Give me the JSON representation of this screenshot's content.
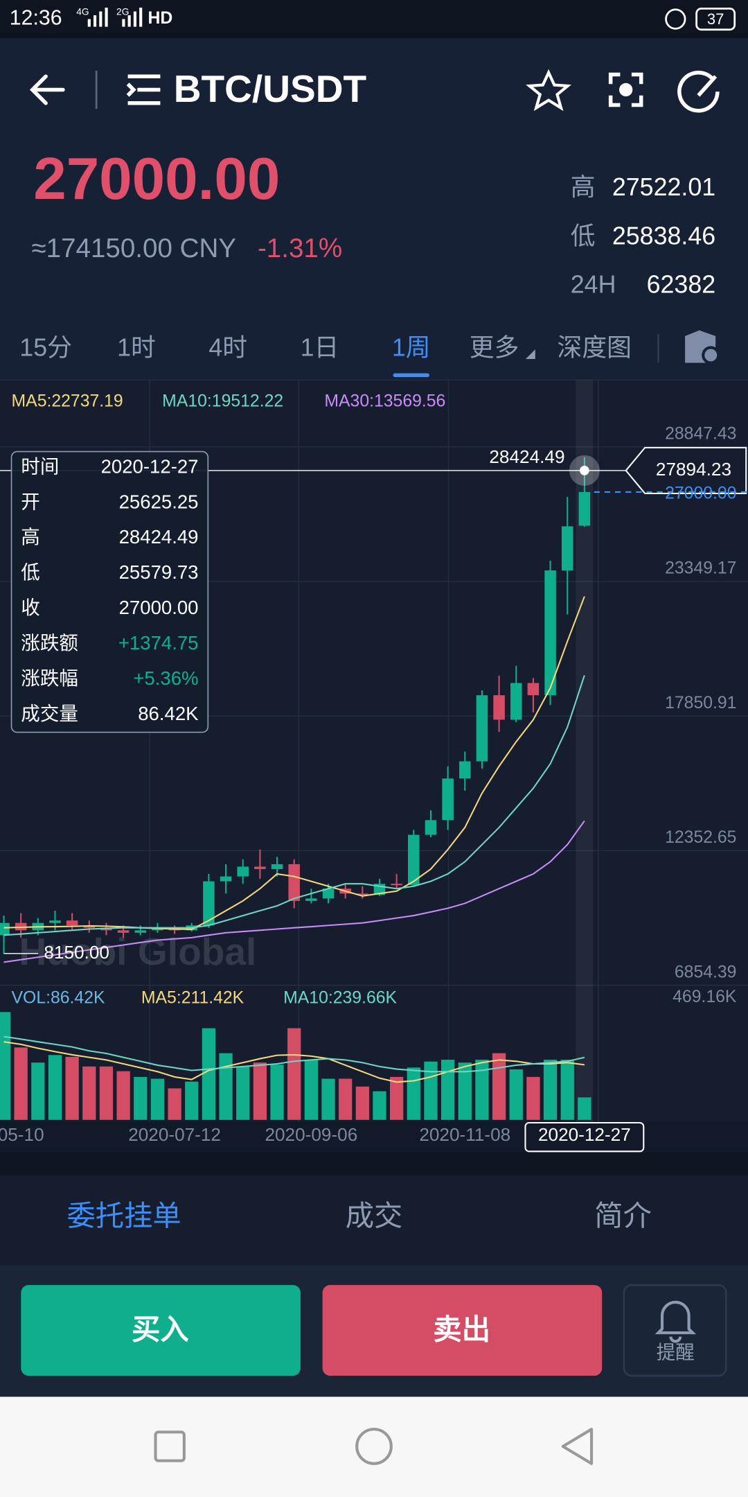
{
  "status_bar": {
    "time": "12:36",
    "net1": "4G",
    "net2": "2G",
    "hd": "HD",
    "battery": "37"
  },
  "header": {
    "pair": "BTC/USDT"
  },
  "price": {
    "last": "27000.00",
    "cny": "≈174150.00 CNY",
    "change": "-1.31%"
  },
  "stats": [
    {
      "label": "高",
      "value": "27522.01"
    },
    {
      "label": "低",
      "value": "25838.46"
    },
    {
      "label": "24H",
      "value": "62382"
    }
  ],
  "periods": {
    "items": [
      "15分",
      "1时",
      "4时",
      "1日",
      "1周",
      "更多",
      "深度图"
    ],
    "active": 4
  },
  "watermark": "Huobi Global",
  "chart_data": [
    {
      "type": "candlestick",
      "categories": [
        null,
        "05-10",
        null,
        null,
        null,
        null,
        null,
        null,
        null,
        null,
        "2020-07-12",
        null,
        null,
        null,
        null,
        null,
        null,
        null,
        "2020-09-06",
        null,
        null,
        null,
        null,
        null,
        null,
        null,
        null,
        "2020-11-08",
        null,
        null,
        null,
        null,
        null,
        null,
        "2020-12-27"
      ],
      "open": [
        8900,
        9400,
        9100,
        9400,
        9500,
        9300,
        9200,
        9100,
        9000,
        9100,
        9200,
        9100,
        9300,
        11100,
        11300,
        11700,
        11600,
        11800,
        10300,
        10400,
        10800,
        10600,
        10550,
        11000,
        10950,
        13000,
        13600,
        15300,
        16000,
        18700,
        17700,
        19200,
        18700,
        23800,
        25625.25
      ],
      "high": [
        9700,
        9800,
        9600,
        9900,
        9800,
        9500,
        9400,
        9300,
        9300,
        9400,
        9300,
        9400,
        11400,
        11800,
        12000,
        12400,
        12100,
        12000,
        10800,
        11000,
        11000,
        10900,
        11200,
        11400,
        13200,
        14000,
        15800,
        16400,
        18900,
        19500,
        19900,
        19400,
        24200,
        26800,
        28424.49
      ],
      "low": [
        8150,
        8800,
        8900,
        9100,
        9100,
        9000,
        8900,
        8800,
        8900,
        9000,
        8950,
        9050,
        9200,
        10600,
        11000,
        11200,
        11300,
        10000,
        10200,
        10200,
        10400,
        10400,
        10500,
        10800,
        10900,
        12900,
        13200,
        14800,
        15700,
        17200,
        17600,
        18000,
        18300,
        22000,
        25579.73
      ],
      "close": [
        9400,
        9100,
        9400,
        9500,
        9300,
        9200,
        9100,
        9000,
        9100,
        9200,
        9100,
        9300,
        11100,
        11300,
        11700,
        11600,
        11800,
        10300,
        10400,
        10800,
        10600,
        10550,
        11000,
        10950,
        13000,
        13600,
        15300,
        16000,
        18700,
        17700,
        19200,
        18700,
        23800,
        25600,
        27000
      ],
      "up_color": "#0fae8c",
      "down_color": "#d44d64",
      "ylim": [
        6854.39,
        29939
      ],
      "yticks": [
        28847.43,
        23349.17,
        17850.91,
        12352.65,
        6854.39
      ],
      "grid": true,
      "series": [
        {
          "name": "MA5:22737.19",
          "color": "#f5d87a",
          "values": [
            9200,
            9220,
            9240,
            9250,
            9260,
            9280,
            9270,
            9240,
            9200,
            9180,
            9150,
            9140,
            9500,
            9900,
            10300,
            10800,
            11400,
            11300,
            11100,
            10900,
            10700,
            10500,
            10600,
            10700,
            11100,
            11600,
            12400,
            13300,
            14700,
            15800,
            16800,
            17700,
            19000,
            20900,
            22737.19
          ]
        },
        {
          "name": "MA10:19512.22",
          "color": "#6fd6c3",
          "values": [
            8900,
            8950,
            9000,
            9050,
            9100,
            9150,
            9180,
            9200,
            9200,
            9200,
            9200,
            9200,
            9300,
            9500,
            9700,
            9900,
            10100,
            10400,
            10600,
            10800,
            11000,
            11000,
            10900,
            10800,
            10900,
            11100,
            11400,
            11900,
            12600,
            13300,
            14100,
            14900,
            15900,
            17400,
            19512.22
          ]
        },
        {
          "name": "MA30:13569.56",
          "color": "#c98cf5",
          "values": [
            7800,
            7900,
            8000,
            8100,
            8200,
            8300,
            8400,
            8500,
            8600,
            8700,
            8750,
            8800,
            8900,
            9000,
            9050,
            9100,
            9150,
            9200,
            9250,
            9300,
            9350,
            9400,
            9500,
            9600,
            9700,
            9850,
            10000,
            10200,
            10500,
            10800,
            11100,
            11400,
            11900,
            12600,
            13569.56
          ]
        }
      ],
      "annotations": {
        "high_label": "28424.49",
        "low_label": "8150.00",
        "crosshair_price": "27894.23",
        "last_price_tag": "27000.00"
      }
    },
    {
      "type": "bar",
      "title": "VOL:86.42K",
      "values": [
        414,
        278,
        220,
        249,
        242,
        205,
        205,
        187,
        165,
        158,
        121,
        147,
        352,
        256,
        205,
        220,
        212,
        352,
        231,
        158,
        158,
        128,
        110,
        165,
        201,
        224,
        231,
        220,
        231,
        256,
        194,
        165,
        231,
        231,
        86.42
      ],
      "ylim": [
        0,
        469.16
      ],
      "yticks": [
        {
          "value": 469.16,
          "label": "469.16K"
        }
      ],
      "series": [
        {
          "name": "MA5:211.42K",
          "color": "#f5d87a",
          "values": [
            300,
            290,
            275,
            262,
            250,
            240,
            230,
            215,
            200,
            185,
            165,
            155,
            190,
            205,
            220,
            235,
            248,
            250,
            245,
            235,
            210,
            185,
            160,
            145,
            150,
            165,
            185,
            205,
            220,
            230,
            225,
            215,
            215,
            220,
            211.42
          ]
        },
        {
          "name": "MA10:239.66K",
          "color": "#6fd6c3",
          "values": [
            320,
            310,
            300,
            290,
            280,
            265,
            255,
            240,
            225,
            210,
            200,
            190,
            195,
            200,
            205,
            210,
            215,
            225,
            230,
            235,
            230,
            220,
            205,
            195,
            190,
            185,
            185,
            185,
            190,
            200,
            210,
            215,
            220,
            225,
            239.66
          ]
        }
      ]
    }
  ],
  "tooltip": {
    "rows": [
      [
        "时间",
        "2020-12-27"
      ],
      [
        "开",
        "25625.25"
      ],
      [
        "高",
        "28424.49"
      ],
      [
        "低",
        "25579.73"
      ],
      [
        "收",
        "27000.00"
      ],
      [
        "涨跌额",
        "+1374.75"
      ],
      [
        "涨跌幅",
        "+5.36%"
      ],
      [
        "成交量",
        "86.42K"
      ]
    ]
  },
  "bottom_tabs": {
    "items": [
      "委托挂单",
      "成交",
      "简介"
    ],
    "active": 0
  },
  "actions": {
    "buy": "买入",
    "sell": "卖出",
    "alert": "提醒"
  }
}
